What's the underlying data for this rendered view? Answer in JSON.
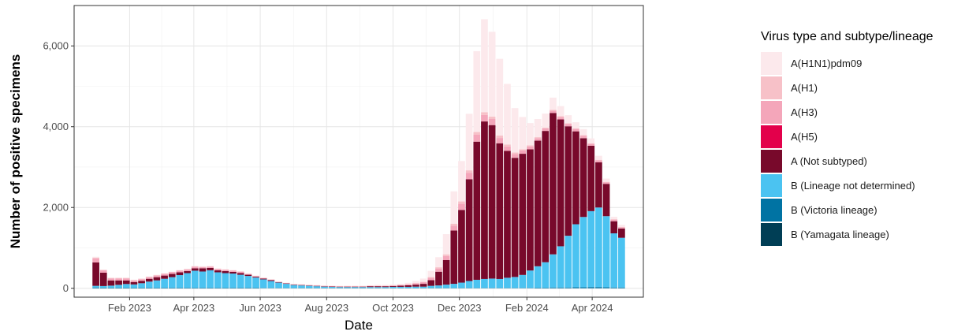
{
  "chart_data": {
    "type": "bar",
    "stacked": true,
    "title": "",
    "xlabel": "Date",
    "ylabel": "Number of positive specimens",
    "ylim": [
      -220,
      7000
    ],
    "yticks": [
      0,
      2000,
      4000,
      6000
    ],
    "ytick_labels": [
      "0",
      "2,000",
      "4,000",
      "6,000"
    ],
    "xlim": [
      "2022-12-12",
      "2024-05-18"
    ],
    "xticks": [
      {
        "date": "2023-02-01",
        "label": "Feb 2023"
      },
      {
        "date": "2023-04-01",
        "label": "Apr 2023"
      },
      {
        "date": "2023-06-01",
        "label": "Jun 2023"
      },
      {
        "date": "2023-08-01",
        "label": "Aug 2023"
      },
      {
        "date": "2023-10-01",
        "label": "Oct 2023"
      },
      {
        "date": "2023-12-01",
        "label": "Dec 2023"
      },
      {
        "date": "2024-02-01",
        "label": "Feb 2024"
      },
      {
        "date": "2024-04-01",
        "label": "Apr 2024"
      }
    ],
    "grid": true,
    "legend_position": "right",
    "legend_title": "Virus type and subtype/lineage",
    "series": [
      {
        "name": "A(H1N1)pdm09",
        "color": "#FCE9EC"
      },
      {
        "name": "A(H1)",
        "color": "#F7C1C8"
      },
      {
        "name": "A(H3)",
        "color": "#F4A6BA"
      },
      {
        "name": "A(H5)",
        "color": "#E3004B"
      },
      {
        "name": "A (Not subtyped)",
        "color": "#78092B"
      },
      {
        "name": "B (Lineage not determined)",
        "color": "#4BC3F1"
      },
      {
        "name": "B (Victoria lineage)",
        "color": "#0073A3"
      },
      {
        "name": "B (Yamagata lineage)",
        "color": "#003E55"
      }
    ],
    "dates": [
      "2023-01-01",
      "2023-01-08",
      "2023-01-15",
      "2023-01-22",
      "2023-01-29",
      "2023-02-05",
      "2023-02-12",
      "2023-02-19",
      "2023-02-26",
      "2023-03-05",
      "2023-03-12",
      "2023-03-19",
      "2023-03-26",
      "2023-04-02",
      "2023-04-09",
      "2023-04-16",
      "2023-04-23",
      "2023-04-30",
      "2023-05-07",
      "2023-05-14",
      "2023-05-21",
      "2023-05-28",
      "2023-06-04",
      "2023-06-11",
      "2023-06-18",
      "2023-06-25",
      "2023-07-02",
      "2023-07-09",
      "2023-07-16",
      "2023-07-23",
      "2023-07-30",
      "2023-08-06",
      "2023-08-13",
      "2023-08-20",
      "2023-08-27",
      "2023-09-03",
      "2023-09-10",
      "2023-09-17",
      "2023-09-24",
      "2023-10-01",
      "2023-10-08",
      "2023-10-15",
      "2023-10-22",
      "2023-10-29",
      "2023-11-05",
      "2023-11-12",
      "2023-11-19",
      "2023-11-26",
      "2023-12-03",
      "2023-12-10",
      "2023-12-17",
      "2023-12-24",
      "2023-12-31",
      "2024-01-07",
      "2024-01-14",
      "2024-01-21",
      "2024-01-28",
      "2024-02-04",
      "2024-02-11",
      "2024-02-18",
      "2024-02-25",
      "2024-03-03",
      "2024-03-10",
      "2024-03-17",
      "2024-03-24",
      "2024-03-31",
      "2024-04-07",
      "2024-04-14",
      "2024-04-21",
      "2024-04-28"
    ],
    "values": {
      "A(H1N1)pdm09": [
        20,
        10,
        10,
        10,
        10,
        10,
        10,
        10,
        10,
        10,
        10,
        10,
        10,
        10,
        10,
        10,
        10,
        10,
        10,
        10,
        10,
        5,
        5,
        5,
        5,
        5,
        5,
        5,
        5,
        5,
        5,
        5,
        5,
        10,
        10,
        10,
        10,
        20,
        20,
        20,
        25,
        30,
        50,
        80,
        150,
        250,
        500,
        800,
        1000,
        1400,
        2000,
        2300,
        2100,
        1900,
        1500,
        1100,
        800,
        550,
        450,
        350,
        300,
        250,
        200,
        150,
        150,
        120,
        100,
        80,
        60,
        50
      ],
      "A(H1)": [
        20,
        10,
        10,
        10,
        10,
        10,
        10,
        10,
        10,
        10,
        10,
        10,
        10,
        10,
        10,
        10,
        10,
        10,
        10,
        10,
        5,
        5,
        5,
        5,
        5,
        5,
        5,
        5,
        5,
        5,
        5,
        5,
        5,
        5,
        5,
        5,
        5,
        5,
        5,
        5,
        5,
        10,
        10,
        10,
        20,
        30,
        40,
        50,
        60,
        60,
        70,
        70,
        60,
        60,
        50,
        40,
        30,
        30,
        25,
        20,
        20,
        20,
        15,
        15,
        15,
        10,
        10,
        10,
        10,
        10
      ],
      "A(H3)": [
        100,
        60,
        50,
        50,
        50,
        40,
        40,
        40,
        40,
        40,
        40,
        40,
        40,
        40,
        30,
        30,
        30,
        30,
        30,
        30,
        20,
        20,
        15,
        15,
        10,
        10,
        10,
        10,
        10,
        10,
        10,
        10,
        10,
        10,
        10,
        10,
        10,
        10,
        10,
        15,
        15,
        20,
        30,
        40,
        60,
        80,
        100,
        120,
        150,
        160,
        170,
        160,
        150,
        130,
        110,
        90,
        80,
        70,
        60,
        60,
        60,
        60,
        60,
        60,
        60,
        50,
        50,
        40,
        40,
        30
      ],
      "A(H5)": [
        0,
        0,
        0,
        0,
        0,
        0,
        0,
        0,
        0,
        0,
        0,
        0,
        0,
        0,
        0,
        0,
        0,
        0,
        0,
        0,
        0,
        0,
        0,
        0,
        0,
        0,
        0,
        0,
        0,
        0,
        0,
        0,
        0,
        0,
        0,
        0,
        0,
        0,
        0,
        0,
        0,
        0,
        0,
        0,
        0,
        0,
        0,
        0,
        0,
        0,
        0,
        0,
        0,
        0,
        0,
        0,
        0,
        0,
        0,
        0,
        0,
        0,
        0,
        0,
        0,
        0,
        0,
        0,
        0,
        0
      ],
      "A (Not subtyped)": [
        580,
        330,
        130,
        110,
        90,
        60,
        60,
        70,
        80,
        80,
        80,
        70,
        50,
        60,
        80,
        60,
        50,
        50,
        40,
        40,
        30,
        20,
        20,
        20,
        10,
        10,
        10,
        10,
        10,
        10,
        10,
        10,
        10,
        10,
        10,
        10,
        20,
        20,
        20,
        20,
        30,
        40,
        50,
        70,
        140,
        340,
        610,
        1320,
        1800,
        2520,
        3420,
        3900,
        3800,
        3360,
        3140,
        2950,
        3000,
        3000,
        3110,
        3250,
        3500,
        3140,
        2710,
        2300,
        1950,
        1620,
        1120,
        800,
        300,
        230
      ],
      "B (Lineage not determined)": [
        40,
        40,
        50,
        70,
        90,
        80,
        110,
        150,
        180,
        220,
        260,
        310,
        360,
        420,
        400,
        430,
        380,
        360,
        350,
        320,
        290,
        250,
        210,
        170,
        130,
        100,
        70,
        60,
        50,
        40,
        30,
        25,
        20,
        20,
        20,
        20,
        20,
        20,
        20,
        25,
        25,
        25,
        30,
        30,
        50,
        60,
        80,
        100,
        130,
        170,
        200,
        220,
        230,
        220,
        250,
        270,
        320,
        430,
        530,
        630,
        820,
        1020,
        1280,
        1560,
        1740,
        1880,
        1970,
        1760,
        1340,
        1230
      ],
      "B (Victoria lineage)": [
        20,
        15,
        15,
        15,
        15,
        15,
        15,
        15,
        15,
        15,
        15,
        15,
        15,
        15,
        15,
        15,
        15,
        15,
        15,
        15,
        15,
        15,
        10,
        10,
        10,
        10,
        10,
        10,
        10,
        10,
        10,
        10,
        10,
        10,
        10,
        10,
        10,
        10,
        10,
        10,
        10,
        10,
        10,
        10,
        10,
        10,
        10,
        10,
        10,
        10,
        10,
        10,
        10,
        10,
        10,
        10,
        10,
        10,
        15,
        15,
        20,
        20,
        20,
        25,
        25,
        30,
        30,
        25,
        20,
        20
      ],
      "B (Yamagata lineage)": [
        0,
        0,
        0,
        0,
        0,
        0,
        0,
        0,
        0,
        0,
        0,
        0,
        0,
        0,
        0,
        0,
        0,
        0,
        0,
        0,
        0,
        0,
        0,
        0,
        0,
        0,
        0,
        0,
        0,
        0,
        0,
        0,
        0,
        0,
        0,
        0,
        0,
        0,
        0,
        0,
        0,
        0,
        0,
        0,
        0,
        0,
        0,
        0,
        0,
        0,
        0,
        0,
        0,
        0,
        0,
        0,
        0,
        0,
        0,
        0,
        0,
        0,
        0,
        0,
        0,
        0,
        0,
        0,
        0,
        0
      ]
    }
  }
}
